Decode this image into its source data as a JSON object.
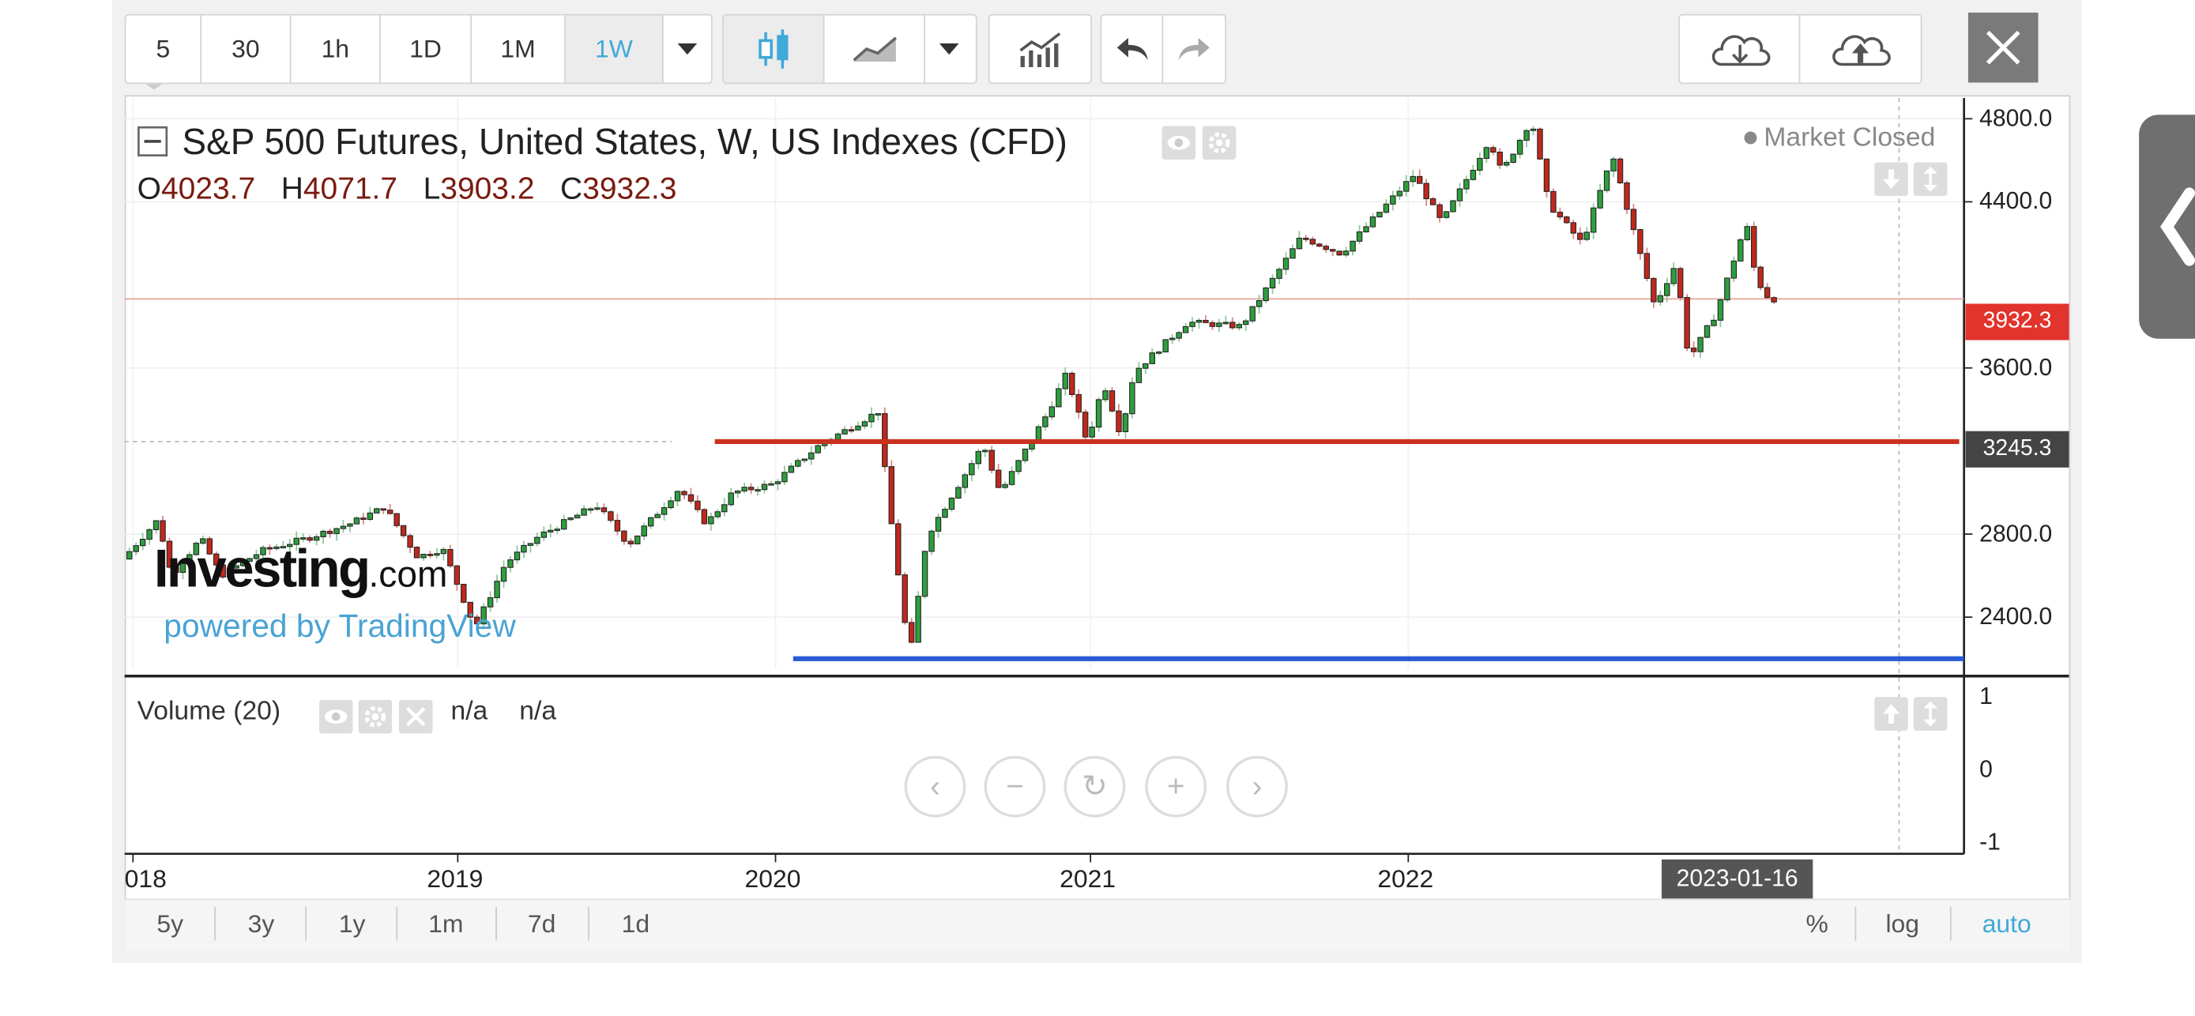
{
  "toolbar": {
    "intervals": [
      "5",
      "30",
      "1h",
      "1D",
      "1M",
      "1W"
    ],
    "active_interval": "1W"
  },
  "legend": {
    "title": "S&P 500 Futures, United States, W, US Indexes (CFD)",
    "o_label": "O",
    "o_value": "4023.7",
    "h_label": "H",
    "h_value": "4071.7",
    "l_label": "L",
    "l_value": "3903.2",
    "c_label": "C",
    "c_value": "3932.3"
  },
  "status": {
    "market": "Market Closed"
  },
  "price_tags": {
    "last": "3932.3",
    "level": "3245.3"
  },
  "volume": {
    "label": "Volume (20)",
    "v1": "n/a",
    "v2": "n/a"
  },
  "branding": {
    "logo_main": "Investing",
    "logo_suffix": ".com",
    "powered": "powered by TradingView"
  },
  "crosshair_date": "2023-01-16",
  "range_buttons": [
    "5y",
    "3y",
    "1y",
    "1m",
    "7d",
    "1d"
  ],
  "scale_buttons": {
    "percent": "%",
    "log": "log",
    "auto": "auto"
  },
  "colors": {
    "up": "#2e9e3e",
    "down": "#c0281c",
    "resistance": "#c8321f",
    "support": "#2a5bd7",
    "active": "#3fa9d8"
  },
  "chart_data": {
    "type": "candlestick",
    "title": "S&P 500 Futures, United States, W, US Indexes (CFD)",
    "y_axis": {
      "ticks": [
        4800.0,
        4400.0,
        3600.0,
        2800.0,
        2400.0
      ],
      "range": [
        2150,
        4900
      ]
    },
    "x_axis": {
      "ticks": [
        "018",
        "2019",
        "2020",
        "2021",
        "2022"
      ],
      "range": [
        "2017-12-15",
        "2023-03-25"
      ]
    },
    "volume_axis": {
      "ticks": [
        1,
        0,
        -1
      ]
    },
    "price_path": [
      {
        "date": "2017-12-20",
        "price": 2680
      },
      {
        "date": "2018-01-26",
        "price": 2870
      },
      {
        "date": "2018-02-09",
        "price": 2600
      },
      {
        "date": "2018-03-12",
        "price": 2780
      },
      {
        "date": "2018-04-02",
        "price": 2600
      },
      {
        "date": "2018-05-15",
        "price": 2720
      },
      {
        "date": "2018-07-01",
        "price": 2780
      },
      {
        "date": "2018-08-15",
        "price": 2850
      },
      {
        "date": "2018-09-20",
        "price": 2930
      },
      {
        "date": "2018-10-25",
        "price": 2690
      },
      {
        "date": "2018-11-20",
        "price": 2730
      },
      {
        "date": "2018-12-24",
        "price": 2350
      },
      {
        "date": "2019-01-25",
        "price": 2660
      },
      {
        "date": "2019-03-01",
        "price": 2790
      },
      {
        "date": "2019-04-30",
        "price": 2940
      },
      {
        "date": "2019-06-03",
        "price": 2750
      },
      {
        "date": "2019-07-26",
        "price": 3020
      },
      {
        "date": "2019-08-23",
        "price": 2850
      },
      {
        "date": "2019-09-20",
        "price": 3000
      },
      {
        "date": "2019-10-31",
        "price": 3040
      },
      {
        "date": "2019-12-20",
        "price": 3230
      },
      {
        "date": "2020-02-19",
        "price": 3390
      },
      {
        "date": "2020-03-01",
        "price": 2950
      },
      {
        "date": "2020-03-23",
        "price": 2200
      },
      {
        "date": "2020-04-10",
        "price": 2790
      },
      {
        "date": "2020-06-08",
        "price": 3230
      },
      {
        "date": "2020-06-26",
        "price": 3000
      },
      {
        "date": "2020-08-14",
        "price": 3380
      },
      {
        "date": "2020-09-03",
        "price": 3570
      },
      {
        "date": "2020-09-25",
        "price": 3240
      },
      {
        "date": "2020-10-12",
        "price": 3530
      },
      {
        "date": "2020-10-30",
        "price": 3280
      },
      {
        "date": "2020-11-13",
        "price": 3580
      },
      {
        "date": "2021-01-08",
        "price": 3820
      },
      {
        "date": "2021-03-05",
        "price": 3800
      },
      {
        "date": "2021-05-07",
        "price": 4230
      },
      {
        "date": "2021-06-18",
        "price": 4150
      },
      {
        "date": "2021-09-02",
        "price": 4530
      },
      {
        "date": "2021-10-01",
        "price": 4300
      },
      {
        "date": "2021-11-20",
        "price": 4700
      },
      {
        "date": "2021-12-03",
        "price": 4540
      },
      {
        "date": "2022-01-03",
        "price": 4800
      },
      {
        "date": "2022-01-21",
        "price": 4390
      },
      {
        "date": "2022-02-25",
        "price": 4200
      },
      {
        "date": "2022-03-29",
        "price": 4620
      },
      {
        "date": "2022-05-12",
        "price": 3900
      },
      {
        "date": "2022-06-03",
        "price": 4100
      },
      {
        "date": "2022-06-17",
        "price": 3640
      },
      {
        "date": "2022-07-15",
        "price": 3860
      },
      {
        "date": "2022-08-16",
        "price": 4300
      },
      {
        "date": "2022-08-26",
        "price": 4030
      },
      {
        "date": "2022-09-09",
        "price": 3932
      }
    ],
    "last_price": 3932.3,
    "horizontal_lines": [
      {
        "price": 3245.3,
        "from": "2019-08-25",
        "to": "2023-03-20",
        "color": "#c8321f"
      },
      {
        "price": 2200.0,
        "from": "2019-11-15",
        "to": "2023-03-25",
        "color": "#2a5bd7"
      }
    ],
    "crosshair": "2023-01-16"
  }
}
